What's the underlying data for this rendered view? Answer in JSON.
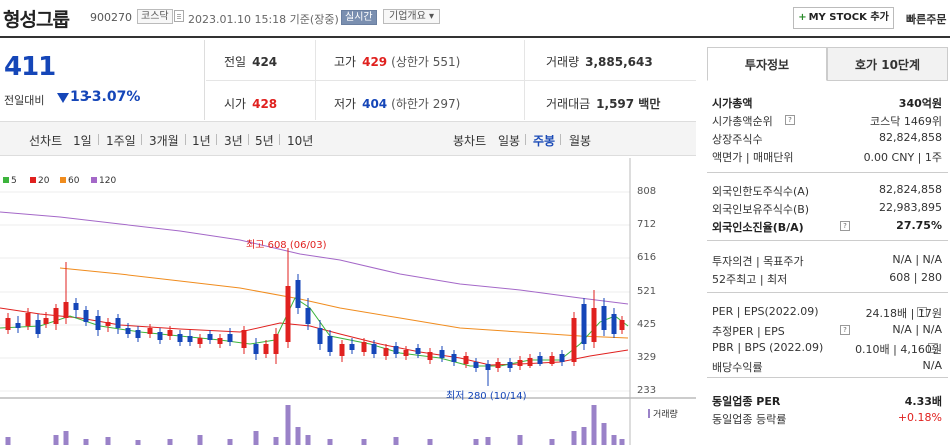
{
  "header": {
    "title": "형성그룹",
    "code": "900270",
    "market": "코스닥",
    "datetime": "2023.01.10 15:18 기준(장중)",
    "realtime": "실시간",
    "corp_menu": "기업개요 ▾",
    "mystock": "MY STOCK 추가",
    "quick_order": "빠른주문"
  },
  "price": {
    "current": "411",
    "change_label": "전일대비",
    "change_value": "13",
    "change_pct": "-3.07%"
  },
  "stats": {
    "prev_label": "전일",
    "prev": "424",
    "high_label": "고가",
    "high": "429",
    "upper_label": "(상한가 551)",
    "volume_label": "거래량",
    "volume": "3,885,643",
    "open_label": "시가",
    "open": "428",
    "low_label": "저가",
    "low": "404",
    "lower_label": "(하한가 297)",
    "amount_label": "거래대금",
    "amount": "1,597 백만"
  },
  "tabs": {
    "line_chart": "선차트",
    "periods": [
      "1일",
      "1주일",
      "3개월",
      "1년",
      "3년",
      "5년",
      "10년"
    ],
    "candle_chart": "봉차트",
    "candles": [
      "일봉",
      "주봉",
      "월봉"
    ],
    "selected_candle": "주봉"
  },
  "chart_data": {
    "type": "candlestick",
    "series": [
      {
        "name": "5",
        "color": "#3cb43c"
      },
      {
        "name": "20",
        "color": "#e0211f"
      },
      {
        "name": "60",
        "color": "#f08c1e"
      },
      {
        "name": "120",
        "color": "#a468c8"
      }
    ],
    "y_ticks": [
      "808",
      "712",
      "616",
      "521",
      "425",
      "329",
      "233"
    ],
    "ylim": [
      233,
      808
    ],
    "annotations": {
      "high": "최고 608 (06/03)",
      "low": "최저 280 (10/14)"
    },
    "volume_label": "거래량"
  },
  "info": {
    "tab_active": "투자정보",
    "tab_other": "호가 10단계",
    "rows": [
      {
        "k": "시가총액",
        "v": "340억원",
        "bold": true
      },
      {
        "k": "시가총액순위",
        "v": "코스닥 1469위"
      },
      {
        "k": "상장주식수",
        "v": "82,824,858"
      },
      {
        "k": "액면가 | 매매단위",
        "v": "0.00 CNY | 1주"
      },
      {
        "k": "외국인한도주식수(A)",
        "v": "82,824,858"
      },
      {
        "k": "외국인보유주식수(B)",
        "v": "22,983,895"
      },
      {
        "k": "외국인소진율(B/A)",
        "v": "27.75%",
        "bold": true
      },
      {
        "k": "투자의견 | 목표주가",
        "v": "N/A | N/A"
      },
      {
        "k": "52주최고 | 최저",
        "v": "608 | 280"
      },
      {
        "k": "PER | EPS(2022.09)",
        "v": "24.18배 | 17원"
      },
      {
        "k": "추정PER | EPS",
        "v": "N/A | N/A"
      },
      {
        "k": "PBR | BPS (2022.09)",
        "v": "0.10배 | 4,160원"
      },
      {
        "k": "배당수익률",
        "v": "N/A"
      },
      {
        "k": "동일업종 PER",
        "v": "4.33배",
        "bold": true
      },
      {
        "k": "동일업종 등락률",
        "v": "+0.18%",
        "red": true
      }
    ]
  }
}
